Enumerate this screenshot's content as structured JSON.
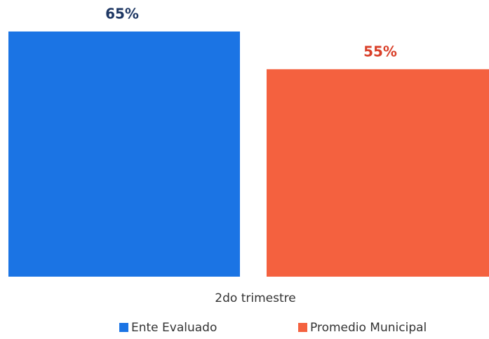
{
  "chart_data": {
    "type": "bar",
    "categories": [
      "2do trimestre"
    ],
    "series": [
      {
        "name": "Ente Evaluado",
        "color": "#1b74e4",
        "label_color": "#1f3864",
        "values": [
          65
        ],
        "value_labels": [
          "65%"
        ]
      },
      {
        "name": "Promedio Municipal",
        "color": "#f4613f",
        "label_color": "#d9402a",
        "values": [
          55
        ],
        "value_labels": [
          "55%"
        ]
      }
    ]
  }
}
